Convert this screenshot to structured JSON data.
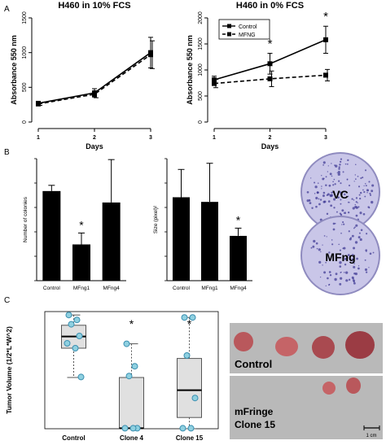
{
  "panel_letters": {
    "a": "A",
    "b": "B",
    "c": "C"
  },
  "chart_data": [
    {
      "type": "line",
      "title": "H460 in 10% FCS",
      "xlabel": "Days",
      "ylabel": "Absorbance 550 nm",
      "x": [
        1,
        2,
        3
      ],
      "xticks": [
        "1",
        "2",
        "3"
      ],
      "ylim": [
        0,
        1500
      ],
      "yticks": [
        "0",
        "500",
        "1000",
        "1500"
      ],
      "series": [
        {
          "style": "solid",
          "values": [
            270,
            420,
            1000
          ],
          "error": [
            20,
            60,
            220
          ]
        },
        {
          "style": "dashed",
          "values": [
            260,
            400,
            970
          ],
          "error": [
            20,
            50,
            200
          ]
        }
      ]
    },
    {
      "type": "line",
      "title": "H460 in 0% FCS",
      "xlabel": "Days",
      "ylabel": "Absorbance 550 nm",
      "x": [
        1,
        2,
        3
      ],
      "xticks": [
        "1",
        "2",
        "3"
      ],
      "ylim": [
        0,
        2000
      ],
      "yticks": [
        "0",
        "500",
        "1000",
        "1500",
        "2000"
      ],
      "legend": {
        "position": "top-left"
      },
      "series": [
        {
          "name": "Control",
          "style": "solid",
          "values": [
            810,
            1120,
            1580
          ],
          "error": [
            70,
            200,
            260
          ]
        },
        {
          "name": "MFNG",
          "style": "dashed",
          "values": [
            740,
            830,
            900
          ],
          "error": [
            80,
            150,
            110
          ]
        }
      ],
      "significance": [
        {
          "x": 2,
          "label": "*"
        },
        {
          "x": 3,
          "label": "*"
        }
      ]
    },
    {
      "type": "bar",
      "ylabel": "Number of colonies",
      "categories": [
        "Control",
        "MFng1",
        "MFng4"
      ],
      "values": [
        470,
        190,
        410
      ],
      "error": [
        30,
        60,
        225
      ],
      "significance": [
        {
          "category": "MFng1",
          "label": "*"
        }
      ]
    },
    {
      "type": "bar",
      "ylabel": "Size (pixel)²",
      "categories": [
        "Control",
        "MFng1",
        "MFng4"
      ],
      "values": [
        270,
        255,
        145
      ],
      "error": [
        90,
        125,
        25
      ],
      "significance": [
        {
          "category": "MFng4",
          "label": "*"
        }
      ]
    },
    {
      "type": "box",
      "ylabel": "Tumor Volume (1/2*L*W^2)",
      "categories": [
        "Control",
        "Clone 4",
        "Clone 15"
      ],
      "boxes": [
        {
          "min": 1050,
          "q1": 1650,
          "median": 1890,
          "q3": 2120,
          "max": 2330,
          "points": [
            2330,
            2230,
            2140,
            1900,
            1750,
            1650,
            1060
          ]
        },
        {
          "min": 0,
          "q1": 0,
          "median": 10,
          "q3": 1050,
          "max": 1740,
          "points": [
            1740,
            1280,
            1080,
            10,
            10,
            10
          ]
        },
        {
          "min": 0,
          "q1": 230,
          "median": 790,
          "q3": 1440,
          "max": 2280,
          "points": [
            2280,
            2280,
            1500,
            630,
            10,
            10
          ]
        }
      ],
      "significance": [
        {
          "category": "Clone 4",
          "label": "*"
        },
        {
          "category": "Clone 15",
          "label": "*"
        }
      ]
    }
  ],
  "colony_plates": [
    {
      "label": "VC"
    },
    {
      "label": "MFng"
    }
  ],
  "tumor_photos": [
    {
      "label": "Control",
      "tumor_count": 4
    },
    {
      "label_line1": "mFringe",
      "label_line2": "Clone 15",
      "tumor_count": 2
    }
  ],
  "scale_bar_label": "1 cm",
  "colors": {
    "line": "#000000",
    "bar": "#000000",
    "box_fill": "#e0e0e0",
    "point_fill": "#8fd0e0",
    "point_stroke": "#3a8fb0",
    "plate_bg": "#c9c6e8",
    "plate_dots": "#3b3592",
    "tissue": "#c05c5f",
    "photo_bg": "#b8b8b8"
  }
}
